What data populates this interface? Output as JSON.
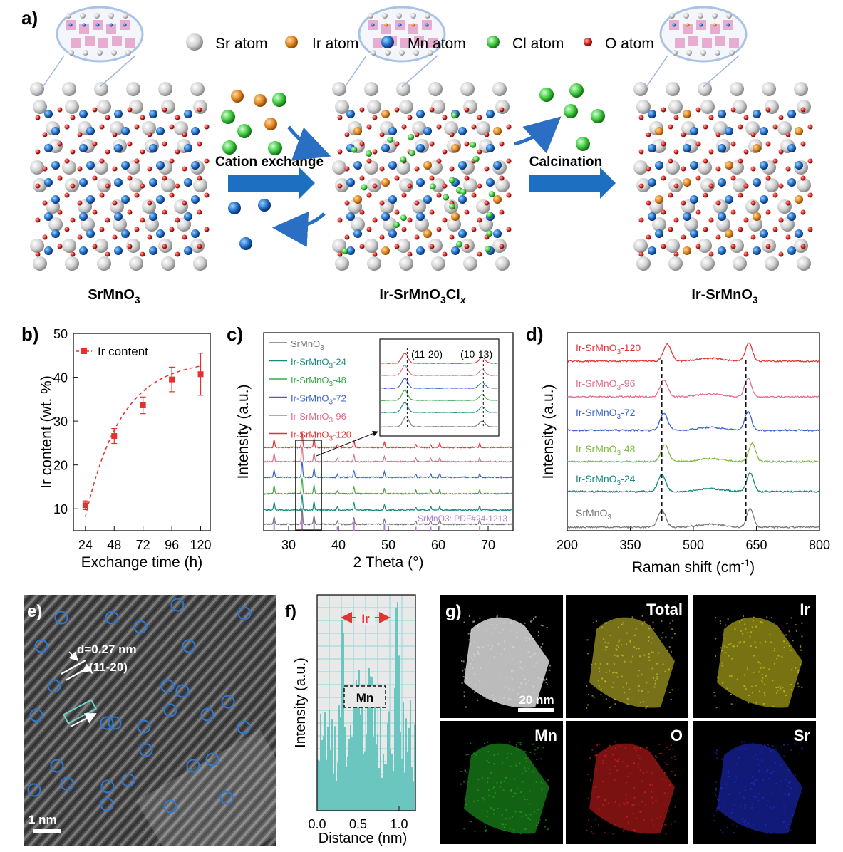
{
  "panel_labels": {
    "a": "a)",
    "b": "b)",
    "c": "c)",
    "d": "d)",
    "e": "e)",
    "f": "f)",
    "g": "g)"
  },
  "schematic": {
    "legend": [
      "Sr atom",
      "Ir atom",
      "Mn atom",
      "Cl atom",
      "O atom"
    ],
    "legend_colors": {
      "Sr atom": "#d4d4d4",
      "Ir atom": "#e0861f",
      "Mn atom": "#1f6fc9",
      "Cl atom": "#3ec83e",
      "O atom": "#d8251f"
    },
    "arrow1_label": "Cation exchange",
    "arrow2_label": "Calcination",
    "caption1_main": "SrMnO",
    "caption1_sub": "3",
    "caption2_main": "Ir-SrMnO",
    "caption2_sub": "3",
    "caption2_tail": "Cl",
    "caption2_x": "x",
    "caption3_main": "Ir-SrMnO",
    "caption3_sub": "3",
    "arrow_color": "#1d6fc2"
  },
  "chart_data": [
    {
      "id": "b",
      "type": "line",
      "xlabel": "Exchange time (h)",
      "ylabel": "Ir content (wt. %)",
      "x": [
        24,
        48,
        72,
        96,
        120
      ],
      "xticks": [
        24,
        48,
        72,
        96,
        120
      ],
      "xlim": [
        14,
        128
      ],
      "ylim": [
        5,
        50
      ],
      "yticks": [
        10,
        20,
        30,
        40,
        50
      ],
      "series": [
        {
          "name": "Ir content",
          "values": [
            10.8,
            26.6,
            33.6,
            39.5,
            40.7
          ],
          "errors": [
            1.0,
            1.7,
            1.9,
            2.8,
            4.8
          ]
        }
      ],
      "color": "#e53030",
      "legend_loc": "top-left"
    },
    {
      "id": "c",
      "type": "line",
      "xlabel": "2 Theta (°)",
      "ylabel": "Intensity (a.u.)",
      "xlim": [
        25,
        75
      ],
      "xticks": [
        30,
        40,
        50,
        60,
        70
      ],
      "series": [
        {
          "name": "SrMnO3",
          "color": "#777777"
        },
        {
          "name": "Ir-SrMnO3-24",
          "color": "#16897e"
        },
        {
          "name": "Ir-SrMnO3-48",
          "color": "#3caa4c"
        },
        {
          "name": "Ir-SrMnO3-72",
          "color": "#3d63cc"
        },
        {
          "name": "Ir-SrMnO3-96",
          "color": "#e26c8c"
        },
        {
          "name": "Ir-SrMnO3-120",
          "color": "#e33434"
        }
      ],
      "peaks": [
        27.1,
        32.7,
        35.1,
        39.8,
        43.1,
        49.2,
        55.5,
        58.5,
        60.3,
        68.3
      ],
      "reference_label": "SrMnO3: PDF#24-1213",
      "reference_color": "#b07fd3",
      "inset_labels": [
        "(11-20)",
        "(10-13)"
      ]
    },
    {
      "id": "d",
      "type": "line",
      "xlabel": "Raman shift (cm-1)",
      "ylabel": "Intensity (a.u.)",
      "xlim": [
        200,
        800
      ],
      "xticks": [
        200,
        350,
        500,
        650,
        800
      ],
      "series": [
        {
          "name": "SrMnO3",
          "color": "#777777",
          "peaks": [
            425,
            635
          ]
        },
        {
          "name": "Ir-SrMnO3-24",
          "color": "#16897e",
          "peaks": [
            425,
            635
          ]
        },
        {
          "name": "Ir-SrMnO3-48",
          "color": "#7dba3c",
          "peaks": [
            432,
            640
          ]
        },
        {
          "name": "Ir-SrMnO3-72",
          "color": "#3d63cc",
          "peaks": [
            430,
            630
          ]
        },
        {
          "name": "Ir-SrMnO3-96",
          "color": "#e26c8c",
          "peaks": [
            430,
            630
          ]
        },
        {
          "name": "Ir-SrMnO3-120",
          "color": "#e33434",
          "peaks": [
            438,
            632
          ]
        }
      ],
      "dashed_positions": [
        425,
        625
      ]
    },
    {
      "id": "f",
      "type": "bar",
      "xlabel": "Distance (nm)",
      "ylabel": "Intensity (a.u.)",
      "xlim": [
        0,
        1.2
      ],
      "xticks": [
        0.0,
        0.5,
        1.0
      ],
      "xtick_labels": [
        "0.0",
        "0.5",
        "1.0"
      ],
      "bar_color": "#6cc6c0",
      "annotation_ir": "Ir",
      "annotation_mn": "Mn"
    }
  ],
  "panel_e": {
    "d_label": "d=0.27 nm",
    "plane_label": "(11-20)",
    "scale_label": "1 nm",
    "circle_color": "#2f79d6"
  },
  "panel_g": {
    "tiles": [
      {
        "label": "",
        "scale": "20 nm",
        "color": "#dcdcdc"
      },
      {
        "label": "Total",
        "color": "#d8d030"
      },
      {
        "label": "Ir",
        "color": "#d8d020"
      },
      {
        "label": "Mn",
        "color": "#22b022"
      },
      {
        "label": "O",
        "color": "#e02020"
      },
      {
        "label": "Sr",
        "color": "#2030d8"
      }
    ]
  }
}
